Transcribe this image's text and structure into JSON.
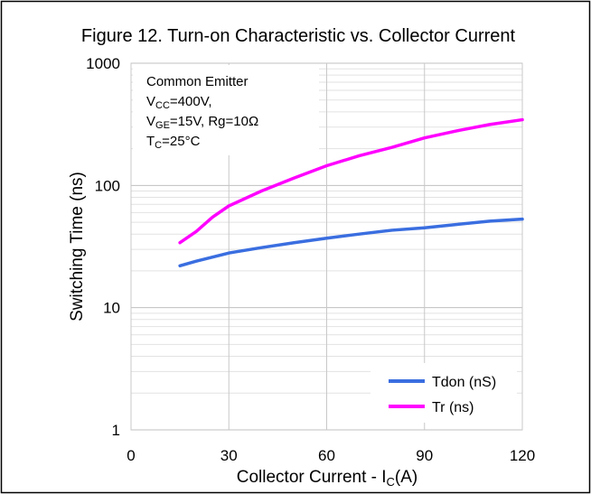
{
  "chart_data": {
    "type": "line",
    "title": "Figure 12. Turn-on Characteristic vs. Collector Current",
    "y_label": "Switching Time (ns)",
    "x_label": [
      "Collector  Current - I",
      "C",
      "(A)"
    ],
    "annotation": [
      [
        "Common Emitter"
      ],
      [
        "V",
        "CC",
        "=400V,"
      ],
      [
        "V",
        "GE",
        "=15V, Rg=10Ω"
      ],
      [
        "T",
        "C",
        "=25°C"
      ]
    ],
    "xlim": [
      0,
      120
    ],
    "xticks": [
      0,
      30,
      60,
      90,
      120
    ],
    "ylim": [
      1,
      1000
    ],
    "yticks": [
      1,
      10,
      100,
      1000
    ],
    "log_y": true,
    "grid": true,
    "legend": "lower right",
    "series": [
      {
        "name": "Tdon (nS)",
        "color": "#3a6ee0",
        "x": [
          15,
          20,
          30,
          40,
          50,
          60,
          70,
          80,
          90,
          100,
          110,
          120
        ],
        "values": [
          22,
          24,
          28,
          31,
          34,
          37,
          40,
          43,
          45,
          48,
          51,
          53
        ]
      },
      {
        "name": "Tr (ns)",
        "color": "#ff00ff",
        "x": [
          15,
          20,
          25,
          30,
          40,
          50,
          60,
          70,
          80,
          90,
          100,
          110,
          120
        ],
        "values": [
          34,
          42,
          55,
          68,
          90,
          115,
          145,
          175,
          205,
          245,
          280,
          315,
          345
        ]
      }
    ]
  }
}
